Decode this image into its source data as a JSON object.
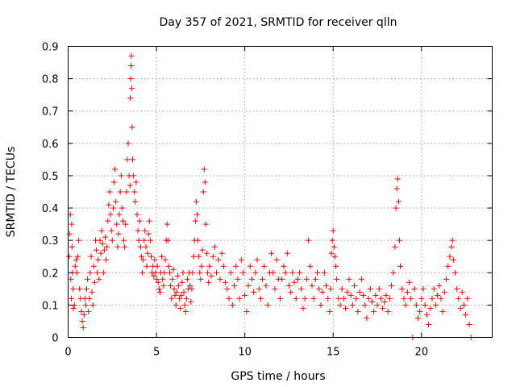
{
  "chart_data": {
    "type": "scatter",
    "title": "Day 357 of 2021, SRMTID for receiver qlln",
    "xlabel": "GPS time / hours",
    "ylabel": "SRMTID / TECUs",
    "xlim": [
      0,
      24
    ],
    "ylim": [
      0,
      0.9
    ],
    "x_ticks": [
      0,
      5,
      10,
      15,
      20
    ],
    "y_ticks": [
      0,
      0.1,
      0.2,
      0.3,
      0.4,
      0.5,
      0.6,
      0.7,
      0.8,
      0.9
    ],
    "grid": true,
    "marker": "+",
    "color": "#ff0000",
    "series": [
      {
        "name": "SRMTID",
        "points": [
          [
            0.05,
            0.25
          ],
          [
            0.08,
            0.32
          ],
          [
            0.12,
            0.38
          ],
          [
            0.15,
            0.18
          ],
          [
            0.18,
            0.12
          ],
          [
            0.2,
            0.35
          ],
          [
            0.22,
            0.28
          ],
          [
            0.25,
            0.2
          ],
          [
            0.28,
            0.15
          ],
          [
            0.3,
            0.09
          ],
          [
            0.35,
            0.1
          ],
          [
            0.4,
            0.22
          ],
          [
            0.45,
            0.24
          ],
          [
            0.5,
            0.2
          ],
          [
            0.55,
            0.25
          ],
          [
            0.6,
            0.3
          ],
          [
            0.65,
            0.15
          ],
          [
            0.7,
            0.12
          ],
          [
            0.75,
            0.08
          ],
          [
            0.8,
            0.05
          ],
          [
            0.85,
            0.03
          ],
          [
            0.9,
            0.07
          ],
          [
            0.95,
            0.12
          ],
          [
            1.0,
            0.1
          ],
          [
            1.05,
            0.15
          ],
          [
            1.1,
            0.18
          ],
          [
            1.15,
            0.08
          ],
          [
            1.2,
            0.12
          ],
          [
            1.25,
            0.2
          ],
          [
            1.3,
            0.25
          ],
          [
            1.35,
            0.14
          ],
          [
            1.4,
            0.1
          ],
          [
            1.45,
            0.22
          ],
          [
            1.5,
            0.17
          ],
          [
            1.55,
            0.3
          ],
          [
            1.6,
            0.27
          ],
          [
            1.65,
            0.2
          ],
          [
            1.7,
            0.24
          ],
          [
            1.75,
            0.18
          ],
          [
            1.8,
            0.3
          ],
          [
            1.85,
            0.26
          ],
          [
            1.9,
            0.33
          ],
          [
            1.95,
            0.29
          ],
          [
            2.0,
            0.2
          ],
          [
            2.05,
            0.27
          ],
          [
            2.1,
            0.31
          ],
          [
            2.15,
            0.24
          ],
          [
            2.2,
            0.28
          ],
          [
            2.25,
            0.36
          ],
          [
            2.3,
            0.41
          ],
          [
            2.35,
            0.45
          ],
          [
            2.4,
            0.38
          ],
          [
            2.45,
            0.33
          ],
          [
            2.5,
            0.3
          ],
          [
            2.55,
            0.4
          ],
          [
            2.6,
            0.48
          ],
          [
            2.65,
            0.52
          ],
          [
            2.7,
            0.42
          ],
          [
            2.75,
            0.35
          ],
          [
            2.8,
            0.28
          ],
          [
            2.85,
            0.32
          ],
          [
            2.9,
            0.38
          ],
          [
            2.95,
            0.45
          ],
          [
            3.0,
            0.5
          ],
          [
            3.05,
            0.4
          ],
          [
            3.1,
            0.36
          ],
          [
            3.15,
            0.3
          ],
          [
            3.2,
            0.28
          ],
          [
            3.25,
            0.35
          ],
          [
            3.3,
            0.45
          ],
          [
            3.35,
            0.55
          ],
          [
            3.4,
            0.6
          ],
          [
            3.45,
            0.5
          ],
          [
            3.5,
            0.47
          ],
          [
            3.52,
            0.74
          ],
          [
            3.54,
            0.8
          ],
          [
            3.56,
            0.84
          ],
          [
            3.58,
            0.87
          ],
          [
            3.6,
            0.77
          ],
          [
            3.62,
            0.65
          ],
          [
            3.65,
            0.55
          ],
          [
            3.7,
            0.5
          ],
          [
            3.75,
            0.45
          ],
          [
            3.8,
            0.42
          ],
          [
            3.85,
            0.48
          ],
          [
            3.9,
            0.38
          ],
          [
            3.95,
            0.33
          ],
          [
            4.0,
            0.3
          ],
          [
            4.05,
            0.36
          ],
          [
            4.1,
            0.28
          ],
          [
            4.15,
            0.25
          ],
          [
            4.2,
            0.2
          ],
          [
            4.25,
            0.24
          ],
          [
            4.3,
            0.3
          ],
          [
            4.35,
            0.33
          ],
          [
            4.4,
            0.28
          ],
          [
            4.45,
            0.22
          ],
          [
            4.5,
            0.26
          ],
          [
            4.55,
            0.32
          ],
          [
            4.6,
            0.36
          ],
          [
            4.65,
            0.3
          ],
          [
            4.7,
            0.25
          ],
          [
            4.75,
            0.2
          ],
          [
            4.8,
            0.22
          ],
          [
            4.85,
            0.19
          ],
          [
            4.9,
            0.24
          ],
          [
            4.95,
            0.2
          ],
          [
            5.0,
            0.18
          ],
          [
            5.05,
            0.22
          ],
          [
            5.1,
            0.17
          ],
          [
            5.15,
            0.15
          ],
          [
            5.2,
            0.14
          ],
          [
            5.25,
            0.2
          ],
          [
            5.3,
            0.25
          ],
          [
            5.35,
            0.18
          ],
          [
            5.4,
            0.16
          ],
          [
            5.45,
            0.2
          ],
          [
            5.5,
            0.24
          ],
          [
            5.55,
            0.3
          ],
          [
            5.6,
            0.35
          ],
          [
            5.65,
            0.3
          ],
          [
            5.7,
            0.22
          ],
          [
            5.75,
            0.2
          ],
          [
            5.8,
            0.16
          ],
          [
            5.85,
            0.12
          ],
          [
            5.9,
            0.18
          ],
          [
            5.95,
            0.21
          ],
          [
            6.0,
            0.15
          ],
          [
            6.05,
            0.13
          ],
          [
            6.1,
            0.1
          ],
          [
            6.15,
            0.14
          ],
          [
            6.2,
            0.19
          ],
          [
            6.25,
            0.16
          ],
          [
            6.3,
            0.12
          ],
          [
            6.35,
            0.09
          ],
          [
            6.4,
            0.13
          ],
          [
            6.45,
            0.17
          ],
          [
            6.5,
            0.2
          ],
          [
            6.55,
            0.14
          ],
          [
            6.6,
            0.1
          ],
          [
            6.65,
            0.08
          ],
          [
            6.7,
            0.12
          ],
          [
            6.75,
            0.18
          ],
          [
            6.8,
            0.15
          ],
          [
            6.85,
            0.2
          ],
          [
            6.9,
            0.16
          ],
          [
            6.95,
            0.11
          ],
          [
            7.0,
            0.15
          ],
          [
            7.05,
            0.2
          ],
          [
            7.1,
            0.25
          ],
          [
            7.15,
            0.3
          ],
          [
            7.2,
            0.36
          ],
          [
            7.25,
            0.42
          ],
          [
            7.3,
            0.38
          ],
          [
            7.35,
            0.3
          ],
          [
            7.4,
            0.25
          ],
          [
            7.45,
            0.2
          ],
          [
            7.5,
            0.18
          ],
          [
            7.55,
            0.22
          ],
          [
            7.6,
            0.27
          ],
          [
            7.65,
            0.45
          ],
          [
            7.7,
            0.52
          ],
          [
            7.75,
            0.48
          ],
          [
            7.8,
            0.35
          ],
          [
            7.85,
            0.26
          ],
          [
            7.9,
            0.2
          ],
          [
            7.95,
            0.17
          ],
          [
            8.0,
            0.22
          ],
          [
            8.1,
            0.19
          ],
          [
            8.2,
            0.25
          ],
          [
            8.3,
            0.28
          ],
          [
            8.4,
            0.2
          ],
          [
            8.5,
            0.24
          ],
          [
            8.6,
            0.18
          ],
          [
            8.7,
            0.26
          ],
          [
            8.8,
            0.22
          ],
          [
            8.9,
            0.17
          ],
          [
            9.0,
            0.15
          ],
          [
            9.1,
            0.12
          ],
          [
            9.2,
            0.2
          ],
          [
            9.3,
            0.1
          ],
          [
            9.4,
            0.16
          ],
          [
            9.5,
            0.22
          ],
          [
            9.6,
            0.18
          ],
          [
            9.7,
            0.12
          ],
          [
            9.8,
            0.24
          ],
          [
            9.9,
            0.2
          ],
          [
            10.0,
            0.13
          ],
          [
            10.1,
            0.08
          ],
          [
            10.2,
            0.16
          ],
          [
            10.3,
            0.22
          ],
          [
            10.4,
            0.18
          ],
          [
            10.5,
            0.14
          ],
          [
            10.6,
            0.2
          ],
          [
            10.7,
            0.24
          ],
          [
            10.8,
            0.15
          ],
          [
            10.9,
            0.12
          ],
          [
            11.0,
            0.18
          ],
          [
            11.1,
            0.22
          ],
          [
            11.2,
            0.16
          ],
          [
            11.3,
            0.1
          ],
          [
            11.4,
            0.2
          ],
          [
            11.5,
            0.26
          ],
          [
            11.6,
            0.2
          ],
          [
            11.7,
            0.15
          ],
          [
            11.8,
            0.24
          ],
          [
            11.9,
            0.18
          ],
          [
            12.0,
            0.12
          ],
          [
            12.1,
            0.18
          ],
          [
            12.2,
            0.22
          ],
          [
            12.3,
            0.2
          ],
          [
            12.4,
            0.26
          ],
          [
            12.5,
            0.16
          ],
          [
            12.6,
            0.14
          ],
          [
            12.7,
            0.2
          ],
          [
            12.8,
            0.17
          ],
          [
            12.9,
            0.12
          ],
          [
            13.0,
            0.18
          ],
          [
            13.1,
            0.2
          ],
          [
            13.2,
            0.15
          ],
          [
            13.3,
            0.09
          ],
          [
            13.4,
            0.12
          ],
          [
            13.5,
            0.18
          ],
          [
            13.6,
            0.3
          ],
          [
            13.7,
            0.22
          ],
          [
            13.8,
            0.16
          ],
          [
            13.9,
            0.12
          ],
          [
            14.0,
            0.18
          ],
          [
            14.1,
            0.2
          ],
          [
            14.2,
            0.15
          ],
          [
            14.3,
            0.1
          ],
          [
            14.4,
            0.14
          ],
          [
            14.5,
            0.2
          ],
          [
            14.6,
            0.16
          ],
          [
            14.7,
            0.12
          ],
          [
            14.8,
            0.08
          ],
          [
            14.85,
            0.15
          ],
          [
            14.9,
            0.26
          ],
          [
            14.95,
            0.3
          ],
          [
            15.0,
            0.33
          ],
          [
            15.05,
            0.28
          ],
          [
            15.1,
            0.25
          ],
          [
            15.15,
            0.22
          ],
          [
            15.2,
            0.18
          ],
          [
            15.3,
            0.12
          ],
          [
            15.4,
            0.1
          ],
          [
            15.5,
            0.15
          ],
          [
            15.6,
            0.12
          ],
          [
            15.7,
            0.09
          ],
          [
            15.8,
            0.14
          ],
          [
            15.9,
            0.18
          ],
          [
            16.0,
            0.13
          ],
          [
            16.1,
            0.1
          ],
          [
            16.2,
            0.16
          ],
          [
            16.3,
            0.12
          ],
          [
            16.4,
            0.08
          ],
          [
            16.5,
            0.14
          ],
          [
            16.6,
            0.18
          ],
          [
            16.7,
            0.13
          ],
          [
            16.8,
            0.1
          ],
          [
            16.9,
            0.06
          ],
          [
            17.0,
            0.12
          ],
          [
            17.1,
            0.15
          ],
          [
            17.2,
            0.11
          ],
          [
            17.3,
            0.08
          ],
          [
            17.4,
            0.13
          ],
          [
            17.5,
            0.1
          ],
          [
            17.6,
            0.15
          ],
          [
            17.7,
            0.12
          ],
          [
            17.8,
            0.09
          ],
          [
            17.9,
            0.11
          ],
          [
            18.0,
            0.13
          ],
          [
            18.1,
            0.08
          ],
          [
            18.2,
            0.12
          ],
          [
            18.3,
            0.16
          ],
          [
            18.4,
            0.2
          ],
          [
            18.5,
            0.28
          ],
          [
            18.55,
            0.4
          ],
          [
            18.6,
            0.46
          ],
          [
            18.65,
            0.49
          ],
          [
            18.7,
            0.42
          ],
          [
            18.75,
            0.3
          ],
          [
            18.8,
            0.22
          ],
          [
            18.9,
            0.15
          ],
          [
            19.0,
            0.12
          ],
          [
            19.1,
            0.1
          ],
          [
            19.2,
            0.14
          ],
          [
            19.3,
            0.17
          ],
          [
            19.4,
            0.12
          ],
          [
            19.5,
            0.0
          ],
          [
            19.6,
            0.15
          ],
          [
            19.7,
            0.1
          ],
          [
            19.8,
            0.06
          ],
          [
            19.9,
            0.08
          ],
          [
            20.0,
            0.12
          ],
          [
            20.1,
            0.15
          ],
          [
            20.2,
            0.1
          ],
          [
            20.3,
            0.07
          ],
          [
            20.4,
            0.04
          ],
          [
            20.5,
            0.09
          ],
          [
            20.6,
            0.12
          ],
          [
            20.7,
            0.15
          ],
          [
            20.8,
            0.1
          ],
          [
            20.9,
            0.13
          ],
          [
            21.0,
            0.16
          ],
          [
            21.1,
            0.12
          ],
          [
            21.2,
            0.08
          ],
          [
            21.3,
            0.14
          ],
          [
            21.4,
            0.18
          ],
          [
            21.5,
            0.22
          ],
          [
            21.6,
            0.25
          ],
          [
            21.7,
            0.28
          ],
          [
            21.75,
            0.3
          ],
          [
            21.8,
            0.24
          ],
          [
            21.9,
            0.2
          ],
          [
            22.0,
            0.15
          ],
          [
            22.1,
            0.12
          ],
          [
            22.2,
            0.09
          ],
          [
            22.3,
            0.14
          ],
          [
            22.4,
            0.1
          ],
          [
            22.5,
            0.07
          ],
          [
            22.6,
            0.12
          ],
          [
            22.7,
            0.04
          ],
          [
            22.8,
            0.0
          ]
        ]
      }
    ]
  }
}
